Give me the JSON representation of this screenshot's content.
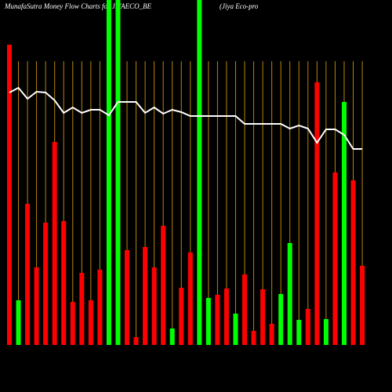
{
  "chart_data": {
    "type": "bar",
    "title": "MunafaSutra  Money Flow  Charts for JIYAECO_BE",
    "subtitle": "(Jiya  Eco-pro",
    "ylim": [
      0,
      440
    ],
    "series": [
      {
        "name": "money flow",
        "type": "bar",
        "values": [
          383,
          57,
          180,
          99,
          156,
          259,
          158,
          55,
          92,
          57,
          96,
          440,
          440,
          121,
          10,
          125,
          99,
          152,
          21,
          73,
          118,
          440,
          60,
          64,
          72,
          40,
          90,
          18,
          71,
          27,
          65,
          130,
          32,
          46,
          335,
          33,
          220,
          310,
          210,
          101
        ],
        "colors": [
          "#ff0000",
          "#00ff00",
          "#ff0000",
          "#ff0000",
          "#ff0000",
          "#ff0000",
          "#ff0000",
          "#ff0000",
          "#ff0000",
          "#ff0000",
          "#ff0000",
          "#00ff00",
          "#00ff00",
          "#ff0000",
          "#ff0000",
          "#ff0000",
          "#ff0000",
          "#ff0000",
          "#00ff00",
          "#ff0000",
          "#ff0000",
          "#00ff00",
          "#00ff00",
          "#ff0000",
          "#ff0000",
          "#00ff00",
          "#ff0000",
          "#ff0000",
          "#ff0000",
          "#ff0000",
          "#00ff00",
          "#00ff00",
          "#00ff00",
          "#ff0000",
          "#ff0000",
          "#00ff00",
          "#ff0000",
          "#00ff00",
          "#ff0000",
          "#ff0000"
        ]
      },
      {
        "name": "trend",
        "type": "line",
        "color": "#ffffff",
        "values": [
          322,
          328,
          314,
          323,
          322,
          312,
          296,
          303,
          296,
          300,
          300,
          293,
          310,
          310,
          310,
          296,
          303,
          295,
          300,
          297,
          292,
          292,
          292,
          292,
          292,
          292,
          282,
          282,
          282,
          282,
          282,
          276,
          280,
          276,
          258,
          275,
          275,
          268,
          250,
          250
        ]
      }
    ],
    "grid_color": "#b8860b"
  }
}
